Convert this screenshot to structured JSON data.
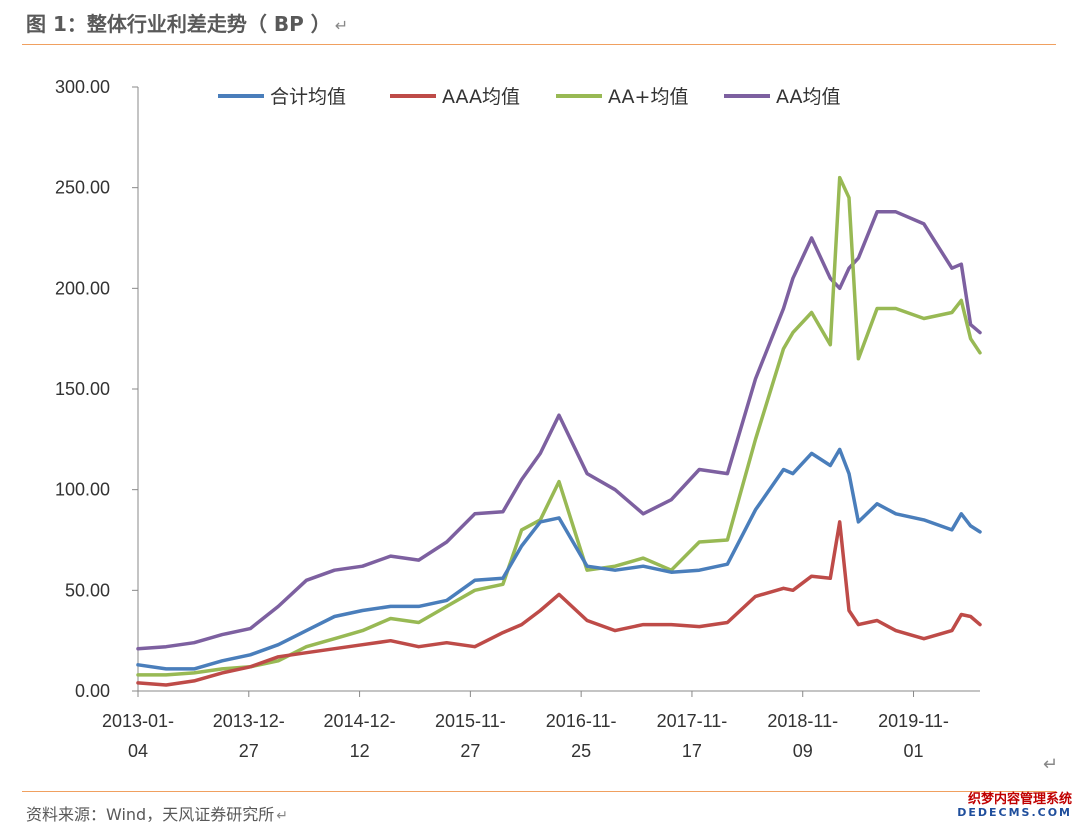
{
  "header": {
    "title": "图 1：整体行业利差走势（ BP ）",
    "return_mark": "↵"
  },
  "footer": {
    "source": "资料来源：Wind，天风证券研究所",
    "return_mark": "↵",
    "corner_mark": "↵"
  },
  "watermark": {
    "line1": "织梦内容管理系统",
    "line2": "DEDECMS.COM"
  },
  "colors": {
    "total": "#4a7ebb",
    "aaa": "#be4b48",
    "aa_plus": "#98b954",
    "aa": "#7d60a0",
    "rule": "#f0a060"
  },
  "chart_data": {
    "type": "line",
    "title": "",
    "xlabel": "",
    "ylabel": "",
    "ylim": [
      0,
      300
    ],
    "yticks": [
      "0.00",
      "50.00",
      "100.00",
      "150.00",
      "200.00",
      "250.00",
      "300.00"
    ],
    "xticks": [
      {
        "line1": "2013-01-",
        "line2": "04"
      },
      {
        "line1": "2013-12-",
        "line2": "27"
      },
      {
        "line1": "2014-12-",
        "line2": "12"
      },
      {
        "line1": "2015-11-",
        "line2": "27"
      },
      {
        "line1": "2016-11-",
        "line2": "25"
      },
      {
        "line1": "2017-11-",
        "line2": "17"
      },
      {
        "line1": "2018-11-",
        "line2": "09"
      },
      {
        "line1": "2019-11-",
        "line2": "01"
      }
    ],
    "grid": false,
    "legend_position": "top",
    "x": [
      "2013-01",
      "2013-04",
      "2013-07",
      "2013-10",
      "2014-01",
      "2014-04",
      "2014-07",
      "2014-10",
      "2015-01",
      "2015-04",
      "2015-07",
      "2015-10",
      "2016-01",
      "2016-04",
      "2016-06",
      "2016-08",
      "2016-10",
      "2017-01",
      "2017-04",
      "2017-07",
      "2017-10",
      "2018-01",
      "2018-04",
      "2018-07",
      "2018-10",
      "2018-11",
      "2019-01",
      "2019-03",
      "2019-04",
      "2019-05",
      "2019-06",
      "2019-08",
      "2019-10",
      "2020-01",
      "2020-04",
      "2020-05",
      "2020-06",
      "2020-07"
    ],
    "series": [
      {
        "name": "合计均值",
        "color_key": "total",
        "values": [
          13,
          11,
          11,
          15,
          18,
          23,
          30,
          37,
          40,
          42,
          42,
          45,
          55,
          56,
          72,
          84,
          86,
          62,
          60,
          62,
          59,
          60,
          63,
          90,
          110,
          108,
          118,
          112,
          120,
          108,
          84,
          93,
          88,
          85,
          80,
          88,
          82,
          79
        ]
      },
      {
        "name": "AAA均值",
        "color_key": "aaa",
        "values": [
          4,
          3,
          5,
          9,
          12,
          17,
          19,
          21,
          23,
          25,
          22,
          24,
          22,
          29,
          33,
          40,
          48,
          35,
          30,
          33,
          33,
          32,
          34,
          47,
          51,
          50,
          57,
          56,
          84,
          40,
          33,
          35,
          30,
          26,
          30,
          38,
          37,
          33
        ]
      },
      {
        "name": "AA+均值",
        "color_key": "aa_plus",
        "values": [
          8,
          8,
          9,
          11,
          12,
          15,
          22,
          26,
          30,
          36,
          34,
          42,
          50,
          53,
          80,
          85,
          104,
          60,
          62,
          66,
          60,
          74,
          75,
          125,
          170,
          178,
          188,
          172,
          255,
          245,
          165,
          190,
          190,
          185,
          188,
          194,
          175,
          168
        ]
      },
      {
        "name": "AA均值",
        "color_key": "aa",
        "values": [
          21,
          22,
          24,
          28,
          31,
          42,
          55,
          60,
          62,
          67,
          65,
          74,
          88,
          89,
          105,
          118,
          137,
          108,
          100,
          88,
          95,
          110,
          108,
          155,
          190,
          205,
          225,
          205,
          200,
          210,
          215,
          238,
          238,
          232,
          210,
          212,
          182,
          178
        ]
      }
    ]
  }
}
